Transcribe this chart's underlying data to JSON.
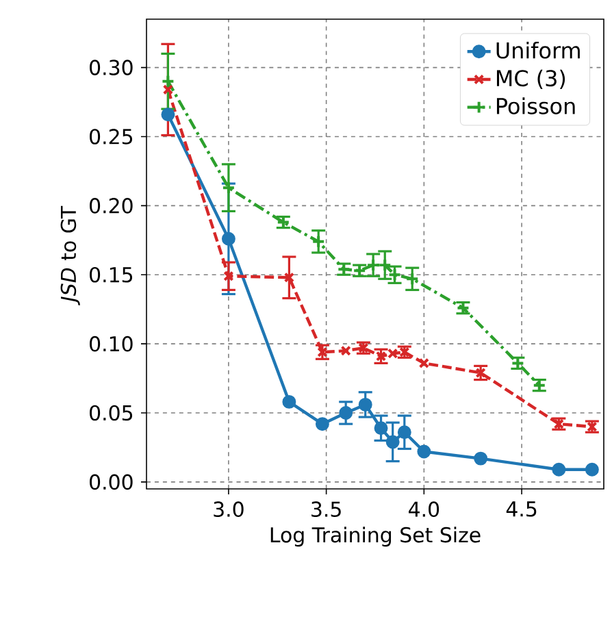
{
  "chart_data": {
    "type": "line",
    "xlabel": "Log Training Set Size",
    "ylabel": "*JSD* to GT",
    "xlim": [
      2.58,
      4.92
    ],
    "ylim": [
      -0.005,
      0.335
    ],
    "xticks": [
      {
        "value": 3.0,
        "label": "3.0"
      },
      {
        "value": 3.5,
        "label": "3.5"
      },
      {
        "value": 4.0,
        "label": "4.0"
      },
      {
        "value": 4.5,
        "label": "4.5"
      }
    ],
    "yticks": [
      {
        "value": 0,
        "label": "0.00"
      },
      {
        "value": 0.05,
        "label": "0.05"
      },
      {
        "value": 0.1,
        "label": "0.10"
      },
      {
        "value": 0.15,
        "label": "0.15"
      },
      {
        "value": 0.2,
        "label": "0.20"
      },
      {
        "value": 0.25,
        "label": "0.25"
      },
      {
        "value": 0.3,
        "label": "0.30"
      }
    ],
    "grid": true,
    "legend": "top right",
    "series": [
      {
        "name": "Uniform",
        "color": "#1f77b4",
        "marker": "circle",
        "line_style": "solid",
        "x": [
          2.69,
          3.0,
          3.31,
          3.48,
          3.6,
          3.7,
          3.78,
          3.84,
          3.9,
          4.0,
          4.29,
          4.69,
          4.86
        ],
        "values": [
          0.266,
          0.176,
          0.058,
          0.042,
          0.05,
          0.056,
          0.039,
          0.029,
          0.036,
          0.022,
          0.017,
          0.009,
          0.009
        ],
        "errors": [
          null,
          0.04,
          null,
          null,
          0.008,
          0.009,
          0.009,
          0.014,
          0.012,
          null,
          null,
          null,
          null
        ]
      },
      {
        "name": "MC (3)",
        "color": "#d62728",
        "marker": "cross",
        "line_style": "dashed",
        "x": [
          2.69,
          3.0,
          3.31,
          3.48,
          3.6,
          3.69,
          3.78,
          3.84,
          3.9,
          4.0,
          4.29,
          4.69,
          4.86
        ],
        "values": [
          0.284,
          0.149,
          0.148,
          0.094,
          0.095,
          0.097,
          0.091,
          0.093,
          0.094,
          0.086,
          0.079,
          0.042,
          0.04
        ],
        "errors": [
          0.033,
          0.01,
          0.015,
          0.005,
          null,
          0.004,
          0.005,
          null,
          0.004,
          null,
          0.005,
          0.004,
          0.004
        ]
      },
      {
        "name": "Poisson",
        "color": "#2ca02c",
        "marker": "plus",
        "line_style": "dashdot",
        "x": [
          2.69,
          3.0,
          3.28,
          3.46,
          3.59,
          3.67,
          3.74,
          3.8,
          3.85,
          3.94,
          4.2,
          4.48,
          4.59
        ],
        "values": [
          0.29,
          0.213,
          0.188,
          0.174,
          0.154,
          0.153,
          0.157,
          0.157,
          0.15,
          0.147,
          0.126,
          0.086,
          0.07
        ],
        "errors": [
          0.02,
          0.017,
          0.004,
          0.008,
          0.004,
          0.004,
          0.008,
          0.01,
          0.006,
          0.008,
          0.004,
          0.004,
          0.004
        ]
      }
    ]
  }
}
